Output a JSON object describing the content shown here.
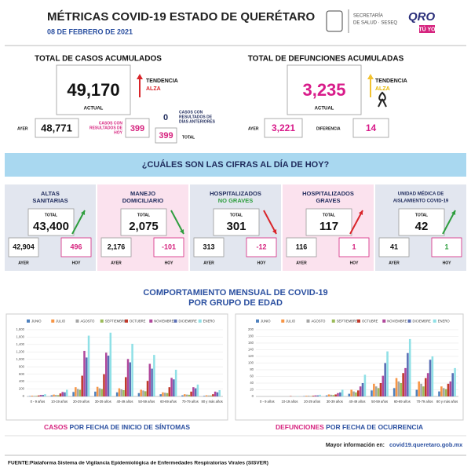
{
  "header": {
    "title": "MÉTRICAS COVID-19 ESTADO DE QUERÉTARO",
    "date": "08 DE FEBRERO DE 2021",
    "agency_lines": [
      "SECRETARÍA",
      "DE SALUD · SESEQ"
    ],
    "brand": "QRO",
    "brand_tag": "TÚ YO"
  },
  "cases": {
    "title": "TOTAL DE CASOS ACUMULADOS",
    "current": "49,170",
    "current_label": "ACTUAL",
    "trend_label": "TENDENCIA",
    "trend": "ALZA",
    "yesterday_label": "AYER",
    "yesterday": "48,771",
    "today_label_lines": [
      "CASOS CON",
      "RESULTADOS DE",
      "HOY"
    ],
    "today": "399",
    "previous": "0",
    "previous_label_lines": [
      "CASOS CON",
      "RESULTADOS DE",
      "DÍAS ANTERIORES"
    ],
    "total": "399",
    "total_label": "TOTAL"
  },
  "deaths": {
    "title": "TOTAL DE DEFUNCIONES ACUMULADAS",
    "current": "3,235",
    "current_label": "ACTUAL",
    "trend_label": "TENDENCIA",
    "trend": "ALZA",
    "yesterday_label": "AYER",
    "yesterday": "3,221",
    "difference_label": "DIFERENCIA",
    "difference": "14"
  },
  "question": "¿CUÁLES SON LAS CIFRAS AL DÍA DE HOY?",
  "cards": [
    {
      "title_lines": [
        "ALTAS",
        "SANITARIAS"
      ],
      "total_label": "TOTAL",
      "total": "43,400",
      "yesterday": "42,904",
      "today": "496",
      "yesterday_label": "AYER",
      "today_label": "HOY"
    },
    {
      "title_lines": [
        "MANEJO",
        "DOMICILIARIO"
      ],
      "total_label": "TOTAL",
      "total": "2,075",
      "yesterday": "2,176",
      "today": "-101",
      "yesterday_label": "AYER",
      "today_label": "HOY"
    },
    {
      "title_lines": [
        "HOSPITALIZADOS",
        "NO GRAVES"
      ],
      "total_label": "TOTAL",
      "total": "301",
      "yesterday": "313",
      "today": "-12",
      "yesterday_label": "AYER",
      "today_label": "HOY"
    },
    {
      "title_lines": [
        "HOSPITALIZADOS",
        "GRAVES"
      ],
      "total_label": "TOTAL",
      "total": "117",
      "yesterday": "116",
      "today": "1",
      "yesterday_label": "AYER",
      "today_label": "HOY"
    },
    {
      "title_lines": [
        "UNIDAD MÉDICA DE",
        "AISLAMIENTO COVID-19"
      ],
      "total_label": "TOTAL",
      "total": "42",
      "yesterday": "41",
      "today": "1",
      "yesterday_label": "AYER",
      "today_label": "HOY"
    }
  ],
  "charts_heading": [
    "COMPORTAMIENTO MENSUAL DE COVID-19",
    "POR GRUPO DE EDAD"
  ],
  "chart_data": [
    {
      "type": "bar",
      "caption_strong": "CASOS",
      "caption": "POR FECHA DE INICIO DE SÍNTOMAS",
      "categories": [
        "0 - 9 años",
        "10-19 años",
        "20-29 años",
        "30-39 años",
        "40-49 años",
        "50-59 años",
        "60-69 años",
        "70-79 años",
        "80 y más años"
      ],
      "ylim": [
        0,
        1800
      ],
      "yticks": [
        0,
        200,
        400,
        600,
        800,
        {
          "value": 1000,
          "label": "1,000"
        },
        {
          "value": 1200,
          "label": "1,200"
        },
        {
          "value": 1400,
          "label": "1,400"
        },
        {
          "value": 1600,
          "label": "1,600"
        },
        {
          "value": 1800,
          "label": "1,800"
        }
      ],
      "grid": true,
      "series": [
        {
          "name": "JUNIO",
          "color": "#4f81bd",
          "values": [
            10,
            30,
            120,
            130,
            110,
            90,
            60,
            30,
            15
          ]
        },
        {
          "name": "JULIO",
          "color": "#f79646",
          "values": [
            20,
            50,
            250,
            260,
            220,
            180,
            110,
            60,
            30
          ]
        },
        {
          "name": "AGOSTO",
          "color": "#a5a5a5",
          "values": [
            15,
            40,
            200,
            220,
            190,
            160,
            100,
            50,
            25
          ]
        },
        {
          "name": "SEPTIEMBRE",
          "color": "#9bbb59",
          "values": [
            15,
            35,
            180,
            200,
            170,
            140,
            90,
            45,
            25
          ]
        },
        {
          "name": "OCTUBRE",
          "color": "#c0392b",
          "values": [
            25,
            80,
            560,
            600,
            520,
            420,
            250,
            130,
            60
          ]
        },
        {
          "name": "NOVIEMBRE",
          "color": "#b0489c",
          "values": [
            40,
            120,
            1230,
            1180,
            1010,
            880,
            500,
            250,
            130
          ]
        },
        {
          "name": "DICIEMBRE",
          "color": "#5b6fb5",
          "values": [
            40,
            110,
            1050,
            1100,
            920,
            750,
            460,
            220,
            110
          ]
        },
        {
          "name": "ENERO",
          "color": "#8fe0e6",
          "values": [
            60,
            180,
            1640,
            1720,
            1420,
            1120,
            720,
            320,
            170
          ]
        }
      ]
    },
    {
      "type": "bar",
      "caption_strong": "DEFUNCIONES",
      "caption": "POR FECHA DE OCURRENCIA",
      "categories": [
        "0 - 9 años",
        "10-19 años",
        "20-29 años",
        "30-39 años",
        "40-49 años",
        "50-59 años",
        "60-69 años",
        "70-79 años",
        "80 y más años"
      ],
      "ylim": [
        0,
        200
      ],
      "yticks": [
        0,
        20,
        40,
        60,
        80,
        100,
        120,
        140,
        160,
        180,
        200
      ],
      "grid": true,
      "series": [
        {
          "name": "JUNIO",
          "color": "#4f81bd",
          "values": [
            0,
            0,
            1,
            3,
            8,
            18,
            25,
            20,
            15
          ]
        },
        {
          "name": "JULIO",
          "color": "#f79646",
          "values": [
            0,
            0,
            2,
            6,
            20,
            38,
            55,
            45,
            30
          ]
        },
        {
          "name": "AGOSTO",
          "color": "#a5a5a5",
          "values": [
            0,
            0,
            2,
            5,
            15,
            30,
            45,
            38,
            25
          ]
        },
        {
          "name": "SEPTIEMBRE",
          "color": "#9bbb59",
          "values": [
            0,
            0,
            1,
            4,
            12,
            25,
            40,
            30,
            22
          ]
        },
        {
          "name": "OCTUBRE",
          "color": "#c0392b",
          "values": [
            0,
            1,
            2,
            6,
            18,
            40,
            70,
            55,
            38
          ]
        },
        {
          "name": "NOVIEMBRE",
          "color": "#b0489c",
          "values": [
            0,
            0,
            3,
            10,
            30,
            62,
            85,
            70,
            45
          ]
        },
        {
          "name": "DICIEMBRE",
          "color": "#5b6fb5",
          "values": [
            0,
            0,
            3,
            12,
            40,
            100,
            130,
            110,
            70
          ]
        },
        {
          "name": "ENERO",
          "color": "#8fe0e6",
          "values": [
            0,
            1,
            5,
            20,
            65,
            135,
            172,
            120,
            85
          ]
        }
      ]
    }
  ],
  "footer": {
    "more_info": "Mayor información en:",
    "url": "covid19.queretaro.gob.mx",
    "source_label": "FUENTE:",
    "source": "Plataforma Sistema de Vigilancia Epidemiológica de Enfermedades Respiratorias Virales (SISVER)"
  }
}
